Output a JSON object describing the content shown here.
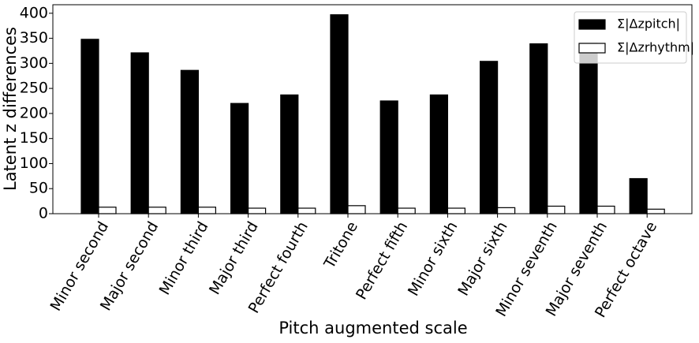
{
  "chart_data": {
    "type": "bar",
    "x_label": "Pitch augmented scale",
    "y_label": "Latent z differences",
    "categories": [
      "Minor second",
      "Major second",
      "Minor third",
      "Major third",
      "Perfect fourth",
      "Tritone",
      "Perfect fifth",
      "Minor sixth",
      "Major sixth",
      "Minor seventh",
      "Major seventh",
      "Perfect octave"
    ],
    "series": [
      {
        "name": "Σ|Δzpitch|",
        "color": "#000000",
        "values": [
          348,
          321,
          286,
          220,
          237,
          397,
          225,
          237,
          304,
          339,
          340,
          70
        ]
      },
      {
        "name": "Σ|Δzrhythm|",
        "color": "#ffffff",
        "values": [
          13,
          13,
          13,
          11,
          11,
          16,
          11,
          11,
          12,
          15,
          15,
          9
        ]
      }
    ],
    "ylim": [
      0,
      417
    ],
    "yticks": [
      0,
      50,
      100,
      150,
      200,
      250,
      300,
      350,
      400
    ],
    "legend": "upper right"
  }
}
